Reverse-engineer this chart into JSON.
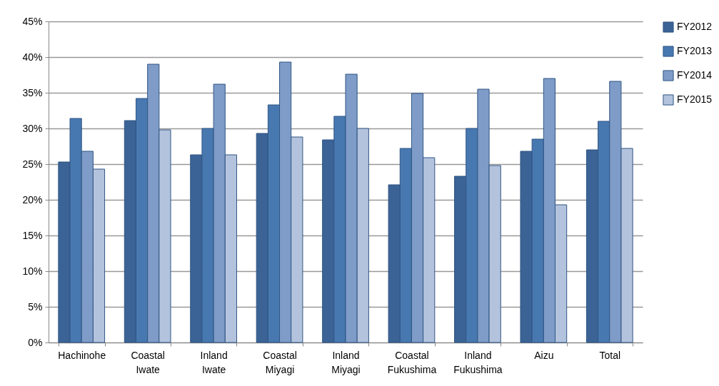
{
  "chart_data": {
    "type": "bar",
    "categories": [
      "Hachinohe",
      "Coastal Iwate",
      "Inland Iwate",
      "Coastal Miyagi",
      "Inland Miyagi",
      "Coastal Fukushima",
      "Inland Fukushima",
      "Aizu",
      "Total"
    ],
    "series": [
      {
        "name": "FY2012",
        "color": "#3b6396",
        "values": [
          25.3,
          31.1,
          26.3,
          29.3,
          28.4,
          22.1,
          23.3,
          26.8,
          27.0
        ]
      },
      {
        "name": "FY2013",
        "color": "#4878b0",
        "values": [
          31.4,
          34.2,
          30.0,
          33.3,
          31.7,
          27.2,
          30.0,
          28.5,
          31.0
        ]
      },
      {
        "name": "FY2014",
        "color": "#7f9cc8",
        "values": [
          26.8,
          39.0,
          36.2,
          39.3,
          37.6,
          34.9,
          35.5,
          37.0,
          36.6
        ]
      },
      {
        "name": "FY2015",
        "color": "#b4c3dd",
        "values": [
          24.3,
          29.8,
          26.3,
          28.8,
          30.0,
          25.9,
          24.8,
          19.3,
          27.2
        ]
      }
    ],
    "ylim": [
      0,
      45
    ],
    "yticks": [
      {
        "value": 0,
        "label": "0%"
      },
      {
        "value": 5,
        "label": "5%"
      },
      {
        "value": 10,
        "label": "10%"
      },
      {
        "value": 15,
        "label": "15%"
      },
      {
        "value": 20,
        "label": "20%"
      },
      {
        "value": 25,
        "label": "25%"
      },
      {
        "value": 30,
        "label": "30%"
      },
      {
        "value": 35,
        "label": "35%"
      },
      {
        "value": 40,
        "label": "40%"
      },
      {
        "value": 45,
        "label": "45%"
      }
    ],
    "grid": "y",
    "legend": "right"
  }
}
